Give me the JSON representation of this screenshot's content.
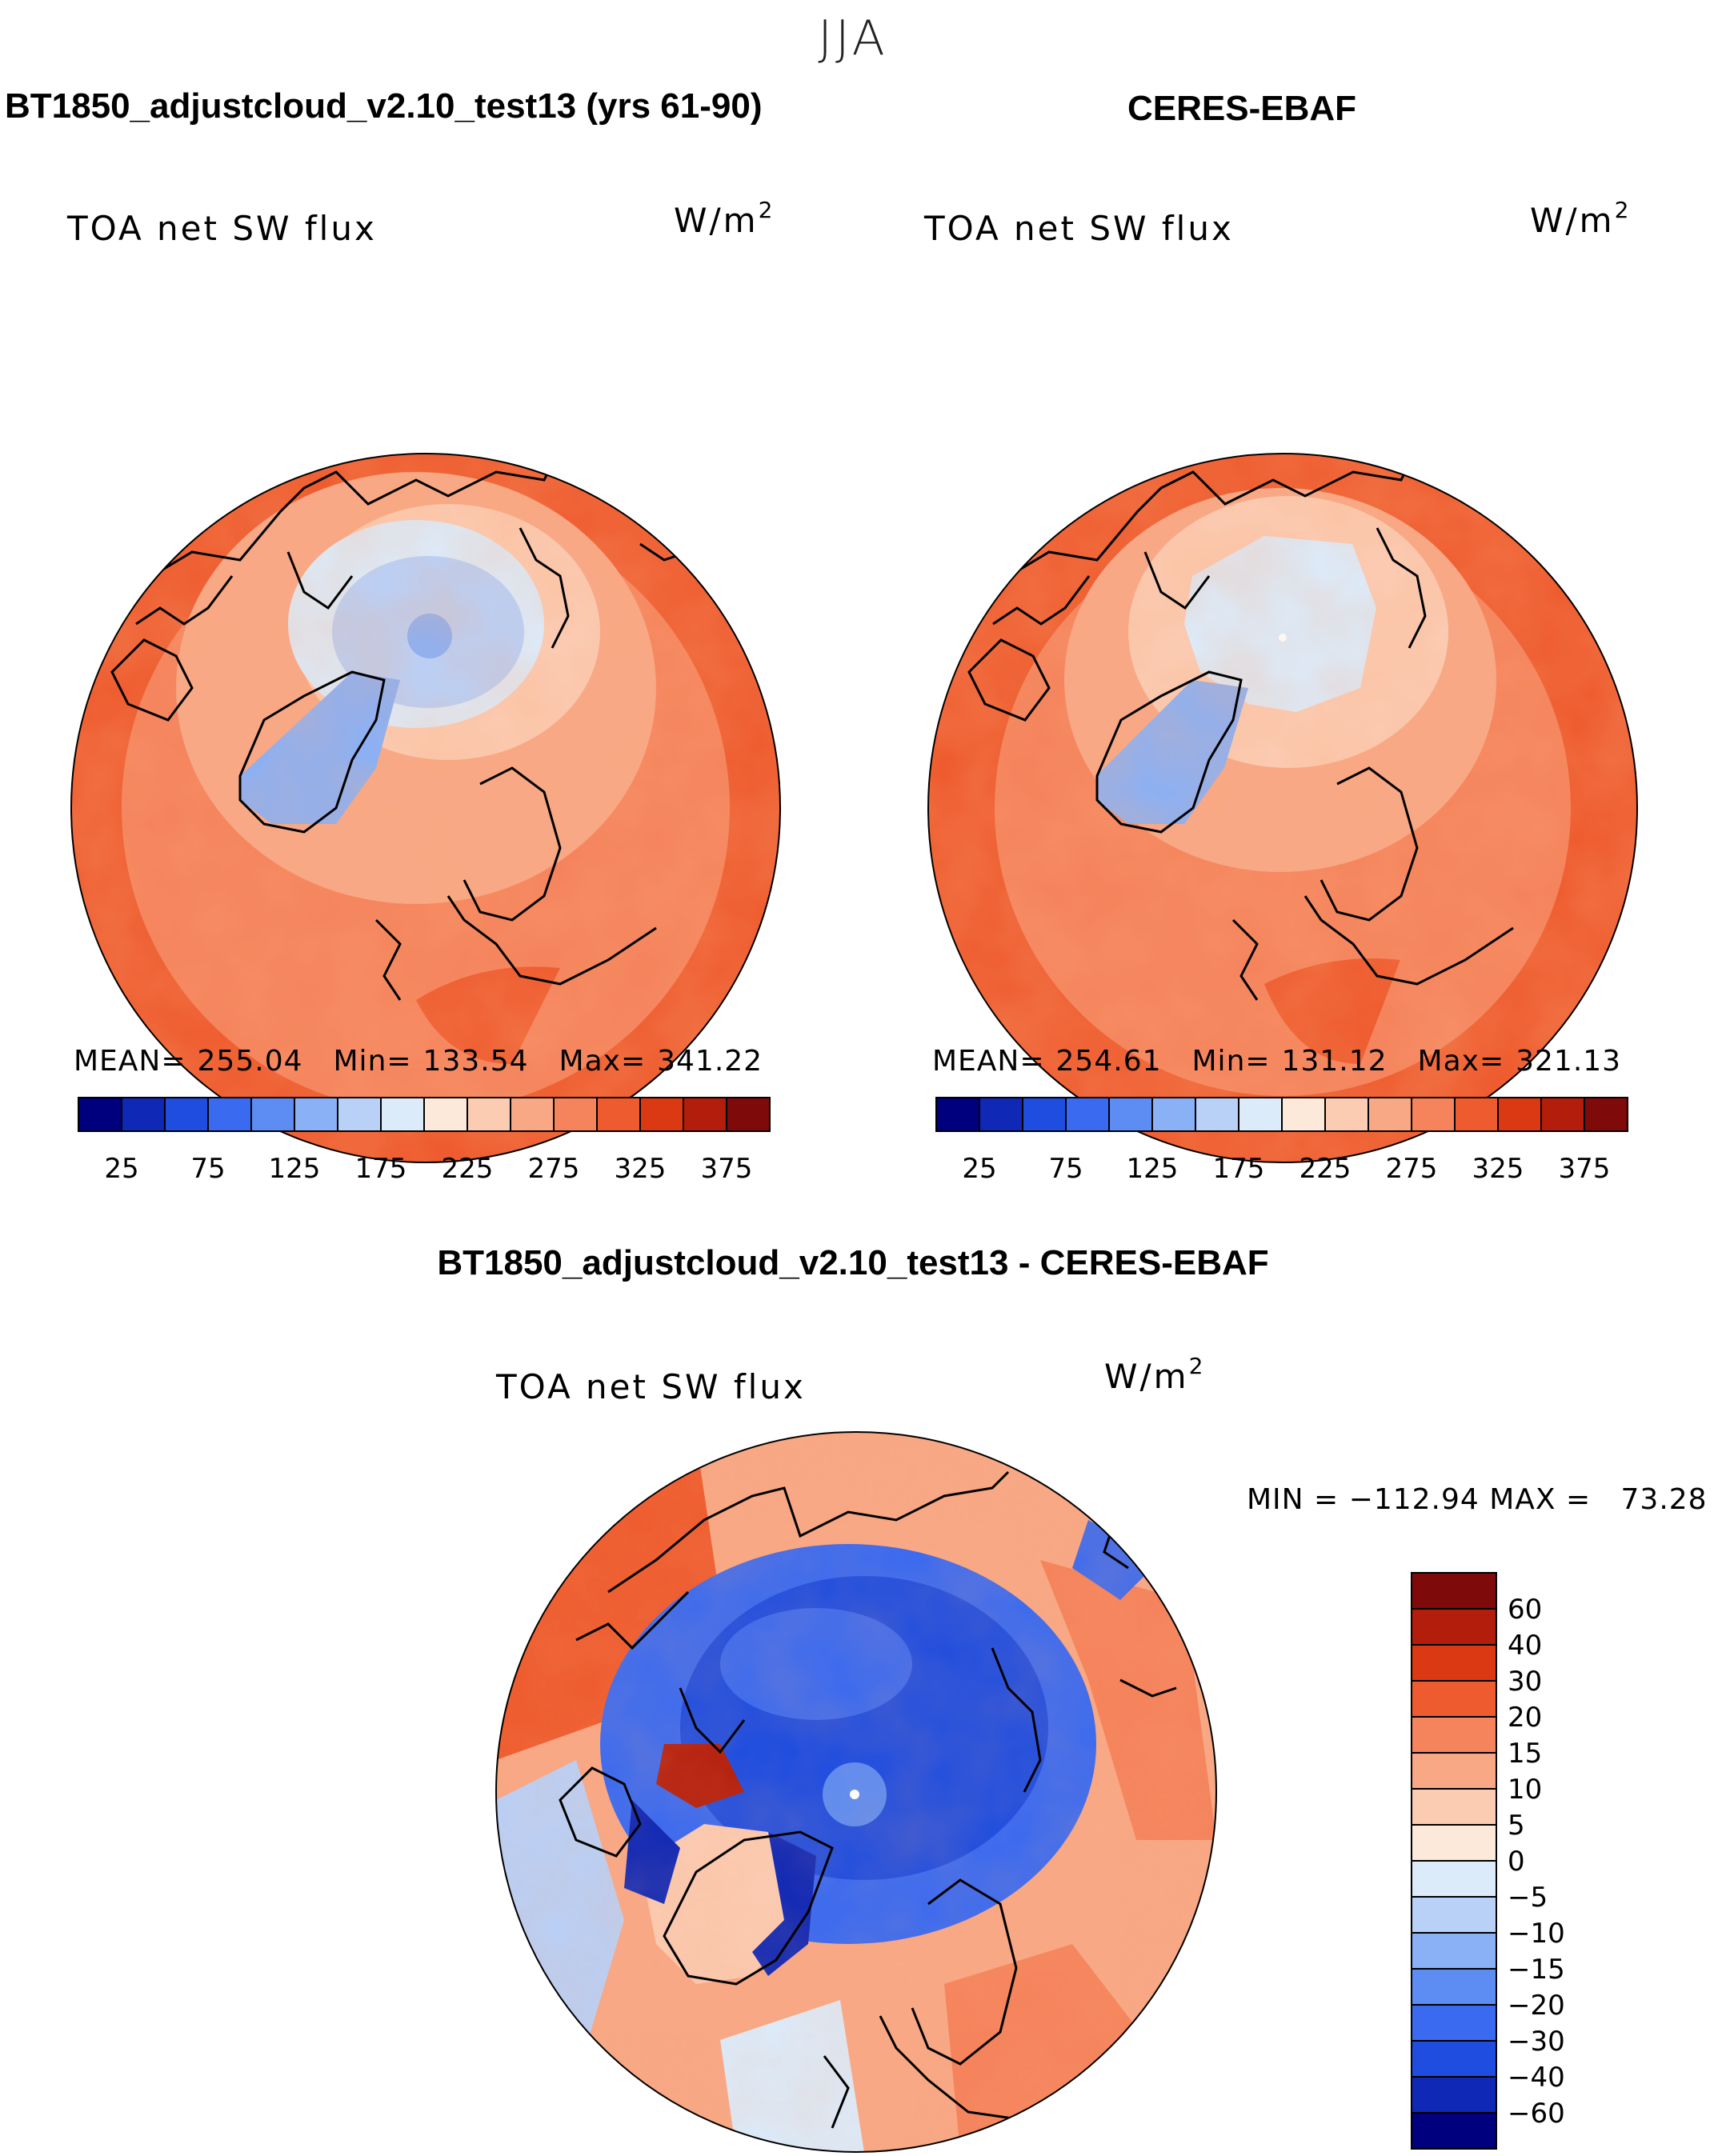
{
  "figure": {
    "season": "JJA",
    "left_title": "BT1850_adjustcloud_v2.10_test13 (yrs 61-90)",
    "right_title": "CERES-EBAF",
    "diff_title": "BT1850_adjustcloud_v2.10_test13 - CERES-EBAF"
  },
  "panels": {
    "model": {
      "variable": "TOA net SW flux",
      "units": "W/m",
      "units_exp": "2",
      "mean_label": "MEAN=",
      "mean": "255.04",
      "min_label": "Min=",
      "min": "133.54",
      "max_label": "Max=",
      "max": "341.22"
    },
    "obs": {
      "variable": "TOA net SW flux",
      "units": "W/m",
      "units_exp": "2",
      "mean_label": "MEAN=",
      "mean": "254.61",
      "min_label": "Min=",
      "min": "131.12",
      "max_label": "Max=",
      "max": "321.13"
    },
    "diff": {
      "variable": "TOA net SW flux",
      "units": "W/m",
      "units_exp": "2",
      "minmax_text": "MIN = −112.94 MAX =   73.28"
    }
  },
  "chart_data": [
    {
      "type": "heatmap",
      "title": "TOA net SW flux",
      "projection": "north polar stereographic",
      "colorbar": {
        "orientation": "horizontal",
        "levels": [
          25,
          50,
          75,
          100,
          125,
          150,
          175,
          200,
          225,
          250,
          275,
          300,
          325,
          350,
          375
        ],
        "tick_labels": [
          "25",
          "75",
          "125",
          "175",
          "225",
          "275",
          "325",
          "375"
        ],
        "colors": [
          "#00007e",
          "#0f28b5",
          "#1e4de0",
          "#3a6af0",
          "#5d8cf2",
          "#8ab0f5",
          "#b9d0f7",
          "#dcebfa",
          "#fde9da",
          "#fbcbb2",
          "#f8a885",
          "#f5835c",
          "#ee5b2e",
          "#db3914",
          "#b31e0c",
          "#7e0a0a"
        ]
      },
      "mean": 255.04,
      "min": 133.54,
      "max": 341.22
    },
    {
      "type": "heatmap",
      "title": "TOA net SW flux",
      "projection": "north polar stereographic",
      "colorbar": {
        "orientation": "horizontal",
        "levels": [
          25,
          50,
          75,
          100,
          125,
          150,
          175,
          200,
          225,
          250,
          275,
          300,
          325,
          350,
          375
        ],
        "tick_labels": [
          "25",
          "75",
          "125",
          "175",
          "225",
          "275",
          "325",
          "375"
        ],
        "colors": [
          "#00007e",
          "#0f28b5",
          "#1e4de0",
          "#3a6af0",
          "#5d8cf2",
          "#8ab0f5",
          "#b9d0f7",
          "#dcebfa",
          "#fde9da",
          "#fbcbb2",
          "#f8a885",
          "#f5835c",
          "#ee5b2e",
          "#db3914",
          "#b31e0c",
          "#7e0a0a"
        ]
      },
      "mean": 254.61,
      "min": 131.12,
      "max": 321.13
    },
    {
      "type": "heatmap",
      "title": "TOA net SW flux",
      "projection": "north polar stereographic",
      "colorbar": {
        "orientation": "vertical",
        "levels": [
          -60,
          -40,
          -30,
          -20,
          -15,
          -10,
          -5,
          0,
          5,
          10,
          15,
          20,
          30,
          40,
          60
        ],
        "tick_labels": [
          "60",
          "40",
          "30",
          "20",
          "15",
          "10",
          "5",
          "0",
          "−5",
          "−10",
          "−15",
          "−20",
          "−30",
          "−40",
          "−60"
        ],
        "colors_top_to_bottom": [
          "#7e0a0a",
          "#b31e0c",
          "#db3914",
          "#ee5b2e",
          "#f5835c",
          "#f8a885",
          "#fbcbb2",
          "#fde9da",
          "#dcebfa",
          "#b9d0f7",
          "#8ab0f5",
          "#5d8cf2",
          "#3a6af0",
          "#1e4de0",
          "#0f28b5",
          "#00007e"
        ]
      },
      "min": -112.94,
      "max": 73.28
    }
  ]
}
